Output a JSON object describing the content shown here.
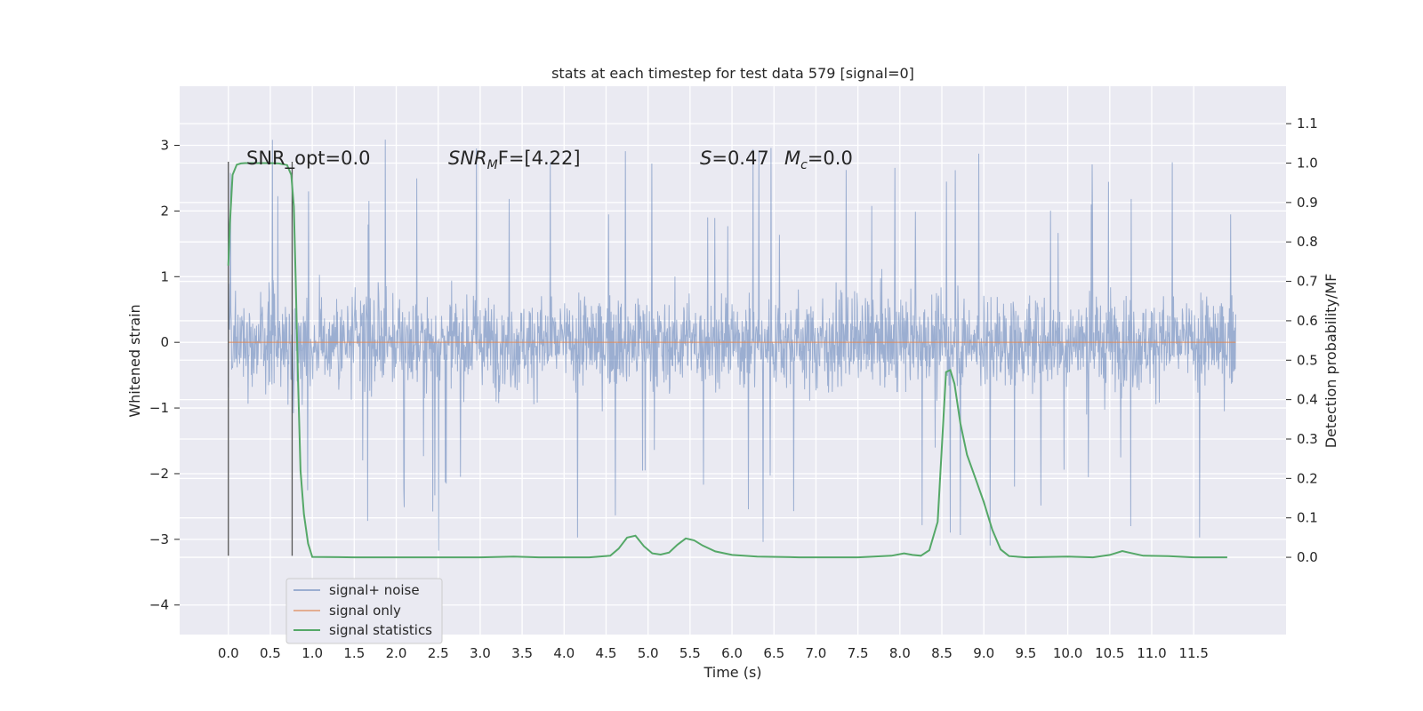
{
  "chart_data": {
    "type": "line",
    "title": "stats at each timestep for test data 579 [signal=0]",
    "xlabel": "Time (s)",
    "ylabel": "Whitened strain",
    "y2label": "Detection probability/MF",
    "xlim": [
      -0.58,
      12.6
    ],
    "ylim": [
      -4.45,
      3.9
    ],
    "y2lim": [
      -0.196,
      1.195
    ],
    "xticks": [
      0.0,
      0.5,
      1.0,
      1.5,
      2.0,
      2.5,
      3.0,
      3.5,
      4.0,
      4.5,
      5.0,
      5.5,
      6.0,
      6.5,
      7.0,
      7.5,
      8.0,
      8.5,
      9.0,
      9.5,
      10.0,
      10.5,
      11.0,
      11.5
    ],
    "xtick_labels": [
      "0.0",
      "0.5",
      "1.0",
      "1.5",
      "2.0",
      "2.5",
      "3.0",
      "3.5",
      "4.0",
      "4.5",
      "5.0",
      "5.5",
      "6.0",
      "6.5",
      "7.0",
      "7.5",
      "8.0",
      "8.5",
      "9.0",
      "9.5",
      "10.0",
      "10.5",
      "11.0",
      "11.5"
    ],
    "yticks": [
      -4,
      -3,
      -2,
      -1,
      0,
      1,
      2,
      3
    ],
    "ytick_labels": [
      "−4",
      "−3",
      "−2",
      "−1",
      "0",
      "1",
      "2",
      "3"
    ],
    "y2ticks": [
      0.0,
      0.1,
      0.2,
      0.3,
      0.4,
      0.5,
      0.6,
      0.7,
      0.8,
      0.9,
      1.0,
      1.1
    ],
    "y2tick_labels": [
      "0.0",
      "0.1",
      "0.2",
      "0.3",
      "0.4",
      "0.5",
      "0.6",
      "0.7",
      "0.8",
      "0.9",
      "1.0",
      "1.1"
    ],
    "grid": true,
    "legend_position": "bottom-left",
    "series": [
      {
        "name": "signal+ noise",
        "color": "#4c72b0",
        "axis": "left",
        "noise_band": {
          "x_range": [
            0.0,
            12.0
          ],
          "typical_range": [
            -1.55,
            1.55
          ],
          "extreme_range": [
            -4.1,
            3.55
          ]
        }
      },
      {
        "name": "signal only",
        "color": "#dd8452",
        "axis": "left",
        "x": [
          0.0,
          12.0
        ],
        "y": [
          0.0,
          0.0
        ]
      },
      {
        "name": "signal statistics",
        "color": "#55a868",
        "axis": "right",
        "x": [
          0.0,
          0.02,
          0.05,
          0.1,
          0.15,
          0.2,
          0.3,
          0.4,
          0.5,
          0.6,
          0.7,
          0.75,
          0.78,
          0.8,
          0.83,
          0.86,
          0.9,
          0.95,
          1.0,
          1.5,
          2.0,
          2.5,
          3.0,
          3.4,
          3.7,
          4.0,
          4.3,
          4.55,
          4.65,
          4.75,
          4.85,
          4.95,
          5.05,
          5.15,
          5.25,
          5.35,
          5.45,
          5.55,
          5.65,
          5.8,
          6.0,
          6.3,
          6.8,
          7.5,
          7.9,
          8.05,
          8.15,
          8.25,
          8.35,
          8.45,
          8.55,
          8.6,
          8.65,
          8.72,
          8.8,
          8.9,
          9.0,
          9.1,
          9.2,
          9.3,
          9.5,
          10.0,
          10.3,
          10.5,
          10.65,
          10.75,
          10.9,
          11.2,
          11.5,
          11.9
        ],
        "y": [
          0.74,
          0.85,
          0.97,
          0.996,
          0.999,
          1.0,
          1.0,
          1.0,
          1.0,
          0.999,
          0.995,
          0.97,
          0.89,
          0.72,
          0.45,
          0.22,
          0.11,
          0.035,
          0.001,
          0.0,
          0.0,
          0.0,
          0.0,
          0.002,
          0.0,
          0.0,
          0.0,
          0.004,
          0.022,
          0.05,
          0.055,
          0.028,
          0.01,
          0.007,
          0.012,
          0.032,
          0.048,
          0.043,
          0.03,
          0.015,
          0.006,
          0.002,
          0.0,
          0.0,
          0.004,
          0.01,
          0.006,
          0.004,
          0.018,
          0.09,
          0.47,
          0.475,
          0.44,
          0.34,
          0.26,
          0.2,
          0.14,
          0.07,
          0.02,
          0.003,
          0.0,
          0.002,
          0.0,
          0.006,
          0.016,
          0.011,
          0.004,
          0.003,
          0.0,
          0.0
        ]
      }
    ],
    "vlines": [
      {
        "x": 0.0,
        "y_range": [
          -3.25,
          2.75
        ],
        "color": "#555555"
      },
      {
        "x": 0.76,
        "y_range": [
          -3.25,
          2.75
        ],
        "color": "#555555"
      }
    ],
    "annotations": [
      {
        "text": "SNR_opt=0.0",
        "x": 0.2,
        "y": 2.75
      },
      {
        "text": "SNR_MF=[4.22]",
        "x": 2.6,
        "y": 2.75
      },
      {
        "text": "S=0.47",
        "x": 5.6,
        "y": 2.75
      },
      {
        "text": "M_c=0.0",
        "x": 6.6,
        "y": 2.75
      }
    ],
    "annotation_text": {
      "snr_opt": "SNR_opt=0.0",
      "snr_mf_main": "SNR",
      "snr_mf_sub": "M",
      "snr_mf_rest": "F=[4.22]",
      "s_main": "S",
      "s_rest": "=0.47",
      "mc_main": "M",
      "mc_sub": "c",
      "mc_rest": "=0.0"
    }
  }
}
